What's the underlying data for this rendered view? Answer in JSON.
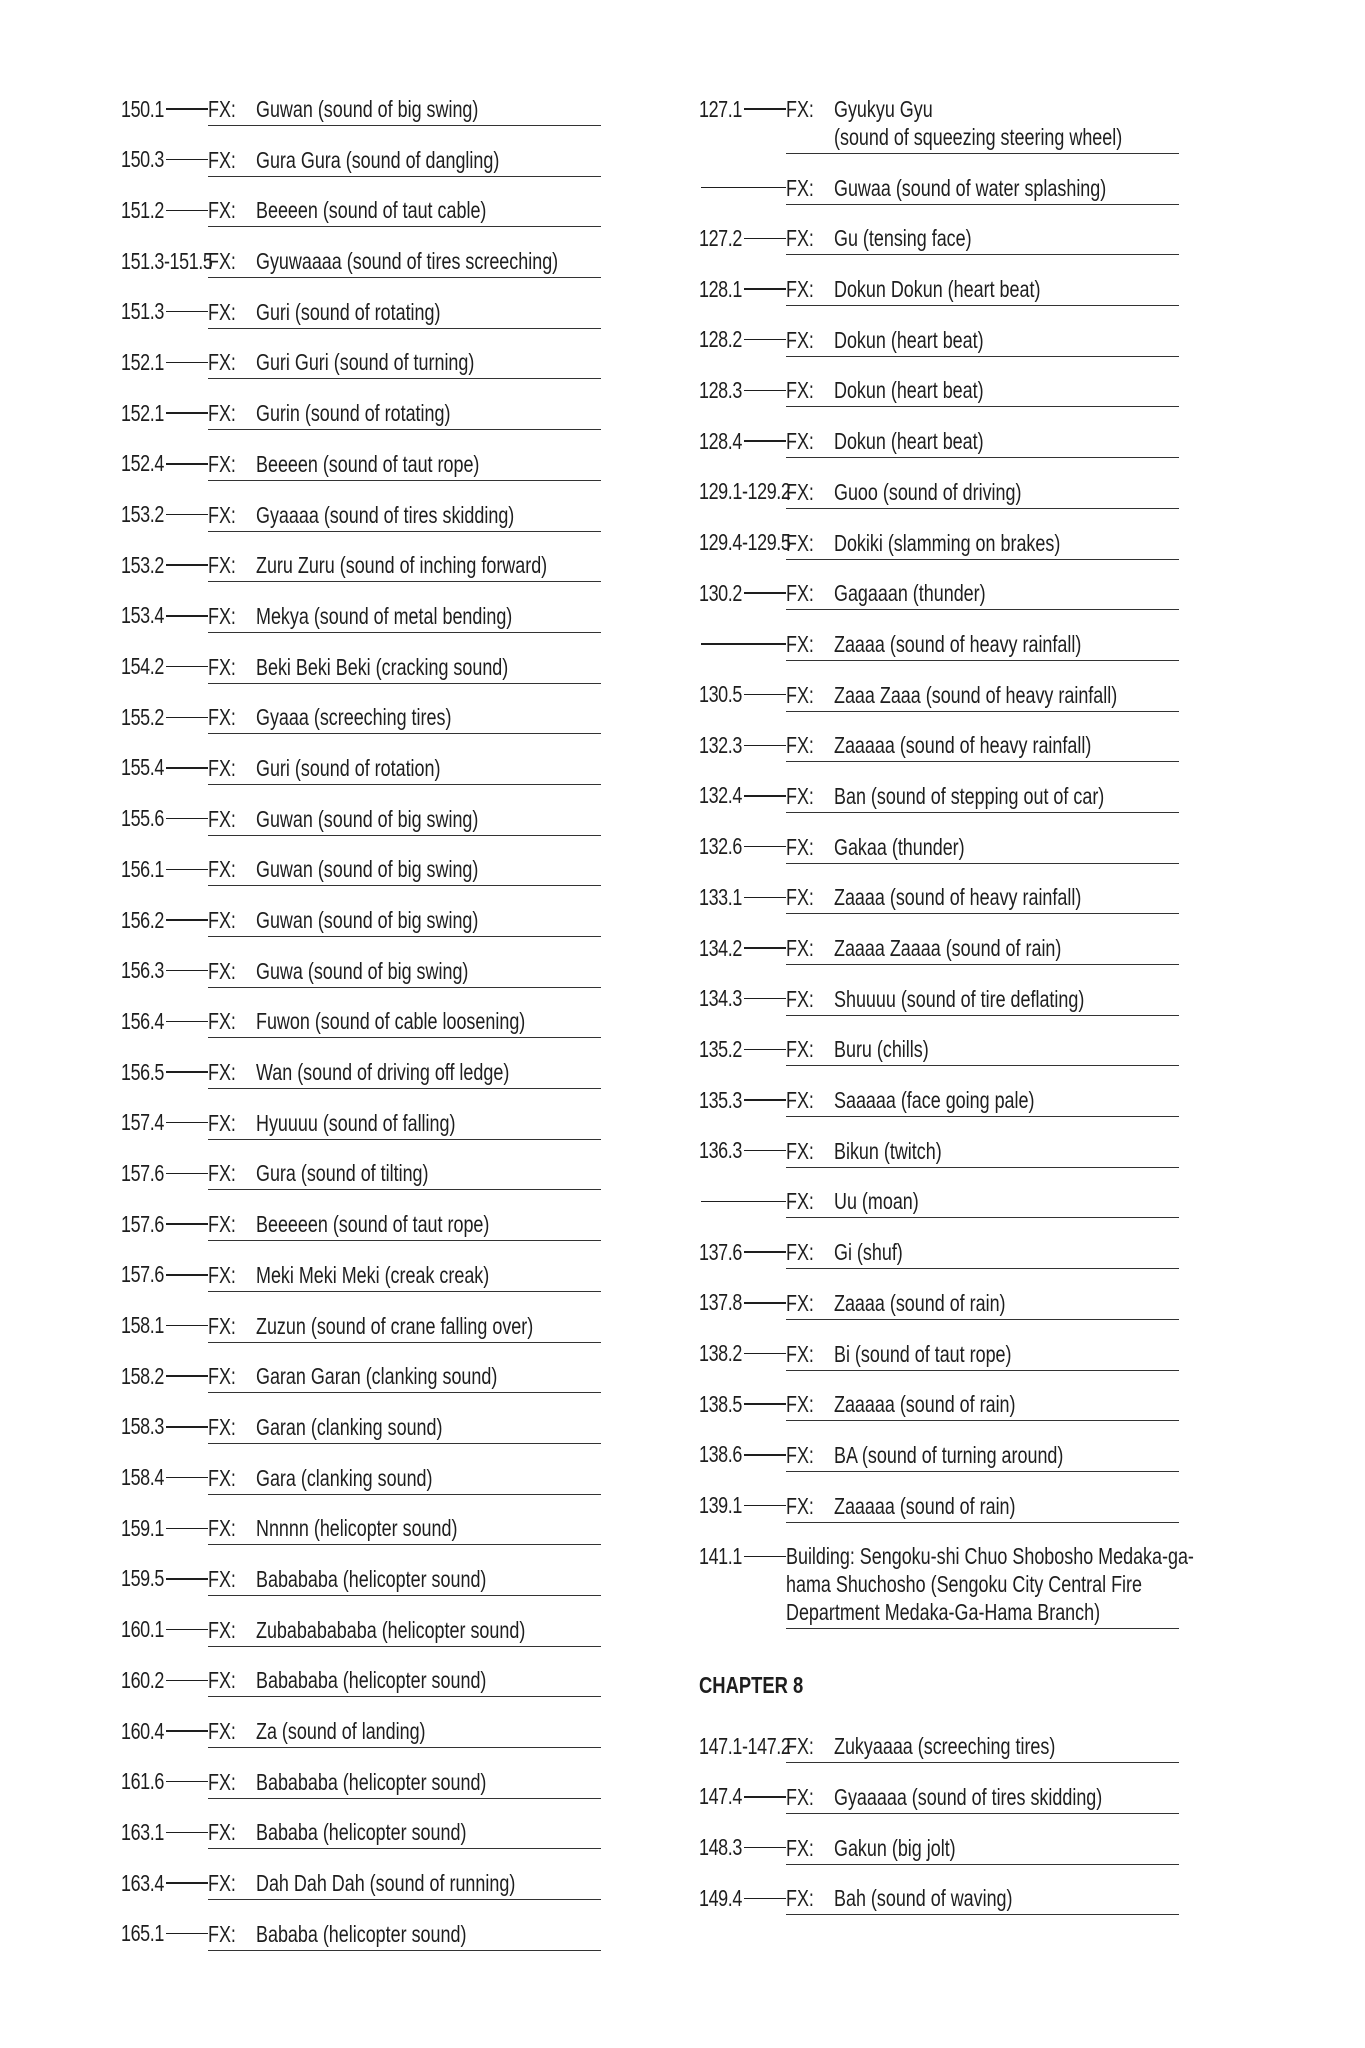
{
  "left_column": [
    {
      "ref": "150.1",
      "label": "FX:",
      "text": [
        "Guwan (sound of big swing)"
      ]
    },
    {
      "ref": "150.3",
      "label": "FX:",
      "text": [
        "Gura Gura (sound of dangling)"
      ]
    },
    {
      "ref": "151.2",
      "label": "FX:",
      "text": [
        "Beeeen (sound of taut cable)"
      ]
    },
    {
      "ref": "151.3-151.5",
      "label": "FX:",
      "text": [
        "Gyuwaaaa (sound of tires screeching)"
      ]
    },
    {
      "ref": "151.3",
      "label": "FX:",
      "text": [
        "Guri (sound of rotating)"
      ]
    },
    {
      "ref": "152.1",
      "label": "FX:",
      "text": [
        "Guri Guri (sound of turning)"
      ]
    },
    {
      "ref": "152.1",
      "label": "FX:",
      "text": [
        "Gurin  (sound of rotating)"
      ]
    },
    {
      "ref": "152.4",
      "label": "FX:",
      "text": [
        "Beeeen (sound of taut rope)"
      ]
    },
    {
      "ref": "153.2",
      "label": "FX:",
      "text": [
        "Gyaaaa (sound of tires skidding)"
      ]
    },
    {
      "ref": "153.2",
      "label": "FX:",
      "text": [
        "Zuru Zuru (sound of inching forward)"
      ]
    },
    {
      "ref": "153.4",
      "label": "FX:",
      "text": [
        "Mekya (sound of metal bending)"
      ]
    },
    {
      "ref": "154.2",
      "label": "FX:",
      "text": [
        "Beki Beki Beki (cracking sound)"
      ]
    },
    {
      "ref": "155.2",
      "label": "FX:",
      "text": [
        "Gyaaa (screeching tires)"
      ]
    },
    {
      "ref": "155.4",
      "label": "FX:",
      "text": [
        "Guri (sound of rotation)"
      ]
    },
    {
      "ref": "155.6",
      "label": "FX:",
      "text": [
        "Guwan (sound of big swing)"
      ]
    },
    {
      "ref": "156.1",
      "label": "FX:",
      "text": [
        "Guwan (sound of big swing)"
      ]
    },
    {
      "ref": "156.2",
      "label": "FX:",
      "text": [
        "Guwan (sound of big swing)"
      ]
    },
    {
      "ref": "156.3",
      "label": "FX:",
      "text": [
        "Guwa (sound of big swing)"
      ]
    },
    {
      "ref": "156.4",
      "label": "FX:",
      "text": [
        "Fuwon (sound of cable loosening)"
      ]
    },
    {
      "ref": "156.5",
      "label": "FX:",
      "text": [
        "Wan (sound of driving off ledge)"
      ]
    },
    {
      "ref": "157.4",
      "label": "FX:",
      "text": [
        "Hyuuuu (sound of falling)"
      ]
    },
    {
      "ref": "157.6",
      "label": "FX:",
      "text": [
        "Gura (sound of tilting)"
      ]
    },
    {
      "ref": "157.6",
      "label": "FX:",
      "text": [
        "Beeeeen (sound of taut rope)"
      ]
    },
    {
      "ref": "157.6",
      "label": "FX:",
      "text": [
        "Meki Meki Meki (creak creak)"
      ]
    },
    {
      "ref": "158.1",
      "label": "FX:",
      "text": [
        "Zuzun (sound of crane falling over)"
      ]
    },
    {
      "ref": "158.2",
      "label": "FX:",
      "text": [
        "Garan Garan (clanking sound)"
      ]
    },
    {
      "ref": "158.3",
      "label": "FX:",
      "text": [
        "Garan (clanking sound)"
      ]
    },
    {
      "ref": "158.4",
      "label": "FX:",
      "text": [
        "Gara (clanking sound)"
      ]
    },
    {
      "ref": "159.1",
      "label": "FX:",
      "text": [
        "Nnnnn (helicopter sound)"
      ]
    },
    {
      "ref": "159.5",
      "label": "FX:",
      "text": [
        "Babababa (helicopter sound)"
      ]
    },
    {
      "ref": "160.1",
      "label": "FX:",
      "text": [
        "Zubababababa (helicopter sound)"
      ]
    },
    {
      "ref": "160.2",
      "label": "FX:",
      "text": [
        "Babababa (helicopter sound)"
      ]
    },
    {
      "ref": "160.4",
      "label": "FX:",
      "text": [
        "Za (sound of landing)"
      ]
    },
    {
      "ref": "161.6",
      "label": "FX:",
      "text": [
        "Babababa (helicopter sound)"
      ]
    },
    {
      "ref": "163.1",
      "label": "FX:",
      "text": [
        "Bababa (helicopter sound)"
      ]
    },
    {
      "ref": "163.4",
      "label": "FX:",
      "text": [
        "Dah Dah Dah (sound of running)"
      ]
    },
    {
      "ref": "165.1",
      "label": "FX:",
      "text": [
        "Bababa (helicopter sound)"
      ]
    }
  ],
  "right_column": [
    {
      "ref": "127.1",
      "label": "FX:",
      "text": [
        "Gyukyu Gyu",
        "(sound of squeezing steering wheel)"
      ]
    },
    {
      "ref": "",
      "label": "FX:",
      "text": [
        "Guwaa (sound of water splashing)"
      ]
    },
    {
      "ref": "127.2",
      "label": "FX:",
      "text": [
        "Gu (tensing face)"
      ]
    },
    {
      "ref": "128.1",
      "label": "FX:",
      "text": [
        "Dokun Dokun (heart beat)"
      ]
    },
    {
      "ref": "128.2",
      "label": "FX:",
      "text": [
        "Dokun (heart beat)"
      ]
    },
    {
      "ref": "128.3",
      "label": "FX:",
      "text": [
        "Dokun (heart beat)"
      ]
    },
    {
      "ref": "128.4",
      "label": "FX:",
      "text": [
        "Dokun (heart beat)"
      ]
    },
    {
      "ref": "129.1-129.2",
      "label": "FX:",
      "text": [
        "Guoo (sound of driving)"
      ]
    },
    {
      "ref": "129.4-129.5",
      "label": "FX:",
      "text": [
        "Dokiki (slamming on brakes)"
      ]
    },
    {
      "ref": "130.2",
      "label": "FX:",
      "text": [
        "Gagaaan (thunder)"
      ]
    },
    {
      "ref": "",
      "label": "FX:",
      "text": [
        "Zaaaa (sound of heavy rainfall)"
      ]
    },
    {
      "ref": "130.5",
      "label": "FX:",
      "text": [
        "Zaaa Zaaa (sound of heavy rainfall)"
      ]
    },
    {
      "ref": "132.3",
      "label": "FX:",
      "text": [
        "Zaaaaa (sound of heavy rainfall)"
      ]
    },
    {
      "ref": "132.4",
      "label": "FX:",
      "text": [
        "Ban (sound of stepping out of car)"
      ]
    },
    {
      "ref": "132.6",
      "label": "FX:",
      "text": [
        "Gakaa (thunder)"
      ]
    },
    {
      "ref": "133.1",
      "label": "FX:",
      "text": [
        "Zaaaa (sound of heavy rainfall)"
      ]
    },
    {
      "ref": "134.2",
      "label": "FX:",
      "text": [
        "Zaaaa Zaaaa (sound of rain)"
      ]
    },
    {
      "ref": "134.3",
      "label": "FX:",
      "text": [
        "Shuuuu (sound of tire deflating)"
      ]
    },
    {
      "ref": "135.2",
      "label": "FX:",
      "text": [
        "Buru (chills)"
      ]
    },
    {
      "ref": "135.3",
      "label": "FX:",
      "text": [
        "Saaaaa (face going pale)"
      ]
    },
    {
      "ref": "136.3",
      "label": "FX:",
      "text": [
        "Bikun (twitch)"
      ]
    },
    {
      "ref": "",
      "label": "FX:",
      "text": [
        "Uu (moan)"
      ]
    },
    {
      "ref": "137.6",
      "label": "FX:",
      "text": [
        "Gi (shuf)"
      ]
    },
    {
      "ref": "137.8",
      "label": "FX:",
      "text": [
        "Zaaaa (sound of rain)"
      ]
    },
    {
      "ref": "138.2",
      "label": "FX:",
      "text": [
        "Bi (sound of taut rope)"
      ]
    },
    {
      "ref": "138.5",
      "label": "FX:",
      "text": [
        "Zaaaaa (sound of rain)"
      ]
    },
    {
      "ref": "138.6",
      "label": "FX:",
      "text": [
        "BA (sound of turning around)"
      ]
    },
    {
      "ref": "139.1",
      "label": "FX:",
      "text": [
        "Zaaaaa (sound of rain)"
      ]
    },
    {
      "ref": "141.1",
      "label": "",
      "text": [
        "Building: Sengoku-shi Chuo Shobosho Medaka-ga-",
        "hama Shuchosho (Sengoku City Central Fire",
        "Department Medaka-Ga-Hama Branch)"
      ]
    }
  ],
  "chapter_heading": "CHAPTER 8",
  "chapter_entries": [
    {
      "ref": "147.1-147.2",
      "label": "FX:",
      "text": [
        "Zukyaaaa (screeching tires)"
      ]
    },
    {
      "ref": "147.4",
      "label": "FX:",
      "text": [
        "Gyaaaaa (sound of tires skidding)"
      ]
    },
    {
      "ref": "148.3",
      "label": "FX:",
      "text": [
        "Gakun (big jolt)"
      ]
    },
    {
      "ref": "149.4",
      "label": "FX:",
      "text": [
        "Bah (sound of waving)"
      ]
    }
  ]
}
